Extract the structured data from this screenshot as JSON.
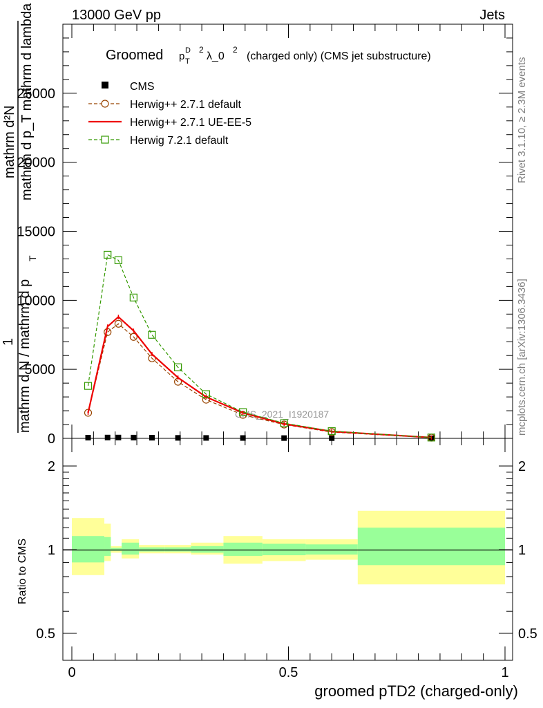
{
  "header": {
    "left": "13000 GeV pp",
    "right": "Jets"
  },
  "title": {
    "prefix": "Groomed",
    "p": "p",
    "sup_D": "D",
    "sub_T": "T",
    "sup2": "2",
    "lambda": "λ_0",
    "sup2b": "2",
    "suffix": "(charged only) (CMS jet substructure)"
  },
  "side": {
    "rivet": "Rivet 3.1.10, ≥ 2.3M events",
    "mcplots": "mcplots.cern.ch [arXiv:1306.3436]"
  },
  "watermark": "CMS_2021_I1920187",
  "ylabel_top": {
    "num_line1": "mathrm d²N",
    "num_line2": "mathrm d p_T mathrm d lambda",
    "sub_T": "T",
    "one": "1",
    "den": "mathrm d N / mathrm d p",
    "den_sub": "T",
    "den_end": "mathrm d p"
  },
  "ylabel_bottom": "Ratio to CMS",
  "xlabel": "groomed pTD2 (charged-only)",
  "legend": [
    {
      "label": "CMS",
      "color": "#000000",
      "marker": "square-filled"
    },
    {
      "label": "Herwig++ 2.7.1 default",
      "color": "#994400",
      "marker": "circle-open",
      "dash": true
    },
    {
      "label": "Herwig++ 2.7.1 UE-EE-5",
      "color": "#ee0000",
      "marker": "none",
      "dash": false
    },
    {
      "label": "Herwig 7.2.1 default",
      "color": "#339900",
      "marker": "square-open",
      "dash": true
    }
  ],
  "chart_data": [
    {
      "type": "line",
      "panel": "main",
      "xlim": [
        0,
        1
      ],
      "ylim": [
        0,
        30000
      ],
      "yticks": [
        0,
        5000,
        10000,
        15000,
        20000,
        25000
      ],
      "ytick_labels": [
        "0",
        "5000",
        "10000",
        "15000",
        "20000",
        "25000"
      ],
      "x": [
        0.0375,
        0.0825,
        0.1075,
        0.1425,
        0.185,
        0.245,
        0.31,
        0.395,
        0.49,
        0.6,
        0.83
      ],
      "series": [
        {
          "name": "CMS",
          "values": [
            50,
            60,
            60,
            55,
            45,
            35,
            30,
            25,
            20,
            15,
            5
          ]
        },
        {
          "name": "Herwig++ 2.7.1 default",
          "values": [
            1850,
            7700,
            8300,
            7350,
            5800,
            4100,
            2800,
            1700,
            1000,
            450,
            50
          ]
        },
        {
          "name": "Herwig++ 2.7.1 UE-EE-5",
          "values": [
            1850,
            8100,
            8800,
            7800,
            6100,
            4400,
            3000,
            1850,
            1050,
            500,
            60
          ]
        },
        {
          "name": "Herwig 7.2.1 default",
          "values": [
            3800,
            13300,
            12900,
            10200,
            7500,
            5150,
            3200,
            1900,
            1100,
            520,
            60
          ]
        }
      ]
    },
    {
      "type": "area",
      "panel": "ratio",
      "xlim": [
        0,
        1
      ],
      "ylim": [
        0.3,
        2.25
      ],
      "yticks": [
        0.5,
        1,
        2
      ],
      "ytick_labels": [
        "0.5",
        "1",
        "2"
      ],
      "xticks": [
        0,
        0.5,
        1
      ],
      "xtick_labels": [
        "0",
        "0.5",
        "1"
      ],
      "bin_edges": [
        0,
        0.075,
        0.09,
        0.115,
        0.155,
        0.215,
        0.275,
        0.35,
        0.44,
        0.54,
        0.66,
        1.0
      ],
      "band_yellow": {
        "lo": [
          0.81,
          0.91,
          0.975,
          0.93,
          0.97,
          0.97,
          0.96,
          0.89,
          0.91,
          0.92,
          0.75
        ],
        "hi": [
          1.3,
          1.24,
          1.03,
          1.09,
          1.04,
          1.04,
          1.06,
          1.12,
          1.09,
          1.09,
          1.38
        ]
      },
      "band_green": {
        "lo": [
          0.9,
          0.95,
          0.99,
          0.96,
          0.985,
          0.985,
          0.975,
          0.95,
          0.955,
          0.96,
          0.88
        ],
        "hi": [
          1.12,
          1.11,
          1.015,
          1.06,
          1.02,
          1.02,
          1.03,
          1.06,
          1.05,
          1.045,
          1.2
        ]
      }
    }
  ]
}
